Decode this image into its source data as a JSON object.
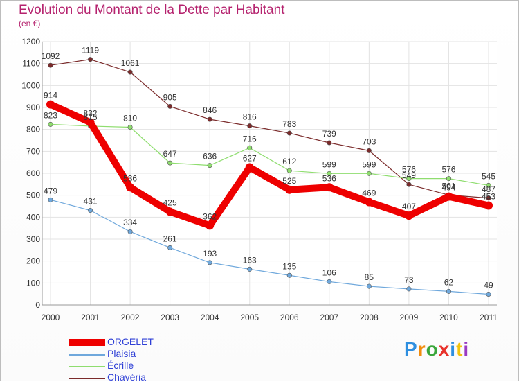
{
  "header": {
    "title": "Evolution du Montant de la Dette par Habitant",
    "subtitle": "(en €)"
  },
  "logo": {
    "text": "Proxiti",
    "letter_colors": [
      "#2e8fe0",
      "#f28c0d",
      "#3aa63a",
      "#e8312a",
      "#2e8fe0",
      "#f2c40d",
      "#9a3ac2"
    ]
  },
  "chart_data": {
    "type": "line",
    "title": "Evolution du Montant de la Dette par Habitant",
    "ylabel": "(en €)",
    "xlabel": "",
    "x": [
      "2000",
      "2001",
      "2002",
      "2003",
      "2004",
      "2005",
      "2006",
      "2007",
      "2008",
      "2009",
      "2010",
      "2011"
    ],
    "ylim": [
      0,
      1200
    ],
    "yticks": [
      0,
      100,
      200,
      300,
      400,
      500,
      600,
      700,
      800,
      900,
      1000,
      1100,
      1200
    ],
    "grid": true,
    "legend": "bottom-left",
    "series": [
      {
        "name": "ORGELET",
        "color": "#ee0000",
        "emphasis": true,
        "values": [
          914,
          832,
          536,
          425,
          362,
          627,
          525,
          536,
          469,
          407,
          494,
          453
        ]
      },
      {
        "name": "Plaisia",
        "color": "#6fa8dc",
        "values": [
          479,
          431,
          334,
          261,
          193,
          163,
          135,
          106,
          85,
          73,
          62,
          49
        ]
      },
      {
        "name": "Écrille",
        "color": "#8fdd6f",
        "values": [
          823,
          815,
          810,
          647,
          636,
          716,
          612,
          599,
          599,
          576,
          576,
          545
        ]
      },
      {
        "name": "Chavéria",
        "color": "#7b2b2b",
        "values": [
          1092,
          1119,
          1061,
          905,
          846,
          816,
          783,
          739,
          703,
          549,
          501,
          487
        ]
      }
    ]
  }
}
